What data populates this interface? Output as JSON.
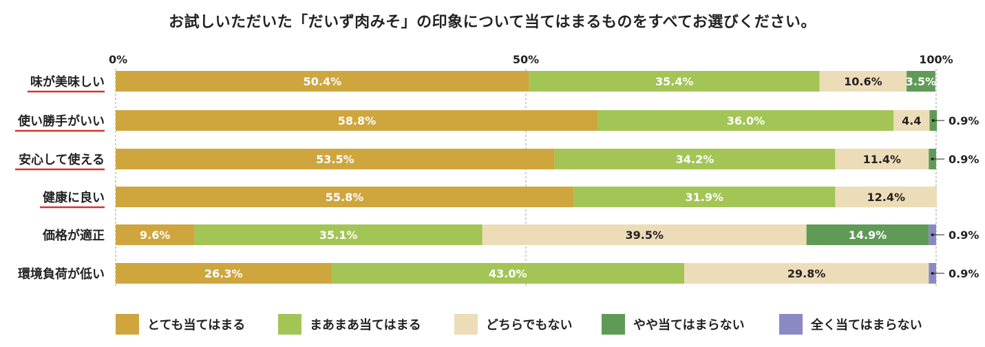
{
  "chart_data": {
    "type": "bar",
    "orientation": "horizontal",
    "stacked": true,
    "title": "お試しいただいた「だいず肉みそ」の印象について当てはまるものをすべてお選びください。",
    "xlim": [
      0,
      100
    ],
    "x_ticks": [
      "0%",
      "50%",
      "100%"
    ],
    "grid": true,
    "legend_position": "bottom",
    "categories": [
      "味が美味しい",
      "使い勝手がいい",
      "安心して使える",
      "健康に良い",
      "価格が適正",
      "環境負荷が低い"
    ],
    "underlined_categories": [
      true,
      true,
      true,
      true,
      false,
      false
    ],
    "series": [
      {
        "name": "とても当てはまる",
        "color": "#cfa63e",
        "values": [
          50.4,
          58.8,
          53.5,
          55.8,
          9.6,
          26.3
        ],
        "labels": [
          "50.4%",
          "58.8%",
          "53.5%",
          "55.8%",
          "9.6%",
          "26.3%"
        ]
      },
      {
        "name": "まあまあ当てはまる",
        "color": "#a2c556",
        "values": [
          35.4,
          36.0,
          34.2,
          31.9,
          35.1,
          43.0
        ],
        "labels": [
          "35.4%",
          "36.0%",
          "34.2%",
          "31.9%",
          "35.1%",
          "43.0%"
        ]
      },
      {
        "name": "どちらでもない",
        "color": "#eddcb8",
        "values": [
          10.6,
          4.4,
          11.4,
          12.4,
          39.5,
          29.8
        ],
        "labels": [
          "10.6%",
          "4.4",
          "11.4%",
          "12.4%",
          "39.5%",
          "29.8%"
        ]
      },
      {
        "name": "やや当てはまらない",
        "color": "#5f9b56",
        "values": [
          3.5,
          0.9,
          0.9,
          0,
          14.9,
          0
        ],
        "labels": [
          "3.5%",
          "0.9%",
          "0.9%",
          "",
          "14.9%",
          ""
        ]
      },
      {
        "name": "全く当てはまらない",
        "color": "#8b89c4",
        "values": [
          0,
          0,
          0,
          0,
          0.9,
          0.9
        ],
        "labels": [
          "",
          "",
          "",
          "",
          "0.9%",
          "0.9%"
        ]
      }
    ]
  }
}
